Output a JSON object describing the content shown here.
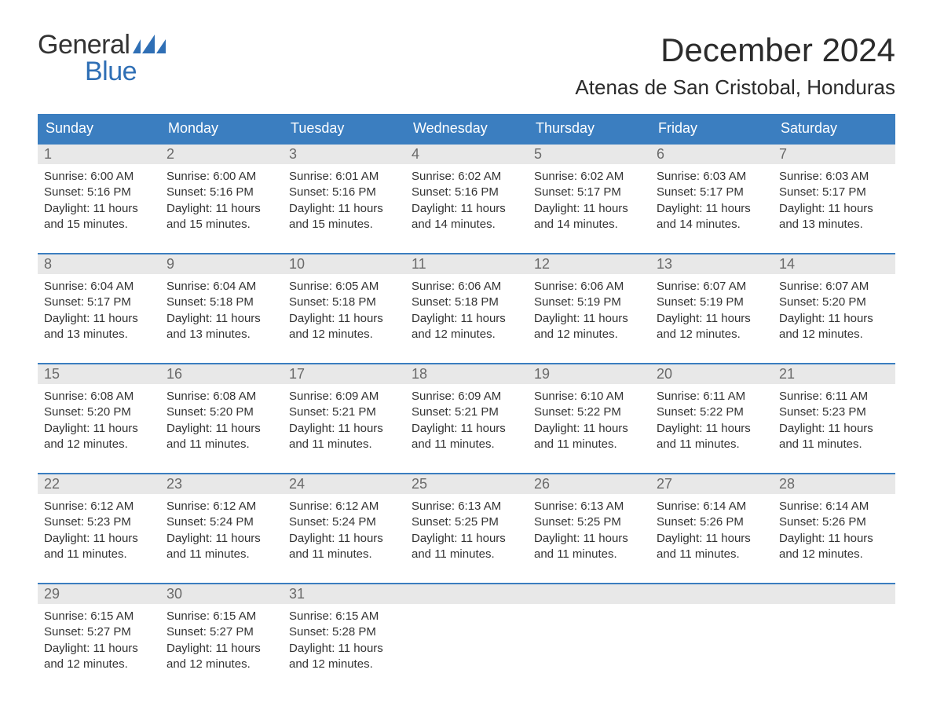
{
  "logo": {
    "text_general": "General",
    "text_blue": "Blue",
    "flag_color": "#2f6fb5"
  },
  "header": {
    "month_title": "December 2024",
    "location": "Atenas de San Cristobal, Honduras"
  },
  "colors": {
    "header_bar": "#3b7ec0",
    "header_text": "#ffffff",
    "day_number_bg": "#e8e8e8",
    "day_number_text": "#6a6a6a",
    "body_text": "#333333",
    "week_border": "#3b7ec0",
    "page_bg": "#ffffff"
  },
  "weekdays": [
    "Sunday",
    "Monday",
    "Tuesday",
    "Wednesday",
    "Thursday",
    "Friday",
    "Saturday"
  ],
  "weeks": [
    [
      {
        "day": "1",
        "sunrise": "Sunrise: 6:00 AM",
        "sunset": "Sunset: 5:16 PM",
        "daylight1": "Daylight: 11 hours",
        "daylight2": "and 15 minutes."
      },
      {
        "day": "2",
        "sunrise": "Sunrise: 6:00 AM",
        "sunset": "Sunset: 5:16 PM",
        "daylight1": "Daylight: 11 hours",
        "daylight2": "and 15 minutes."
      },
      {
        "day": "3",
        "sunrise": "Sunrise: 6:01 AM",
        "sunset": "Sunset: 5:16 PM",
        "daylight1": "Daylight: 11 hours",
        "daylight2": "and 15 minutes."
      },
      {
        "day": "4",
        "sunrise": "Sunrise: 6:02 AM",
        "sunset": "Sunset: 5:16 PM",
        "daylight1": "Daylight: 11 hours",
        "daylight2": "and 14 minutes."
      },
      {
        "day": "5",
        "sunrise": "Sunrise: 6:02 AM",
        "sunset": "Sunset: 5:17 PM",
        "daylight1": "Daylight: 11 hours",
        "daylight2": "and 14 minutes."
      },
      {
        "day": "6",
        "sunrise": "Sunrise: 6:03 AM",
        "sunset": "Sunset: 5:17 PM",
        "daylight1": "Daylight: 11 hours",
        "daylight2": "and 14 minutes."
      },
      {
        "day": "7",
        "sunrise": "Sunrise: 6:03 AM",
        "sunset": "Sunset: 5:17 PM",
        "daylight1": "Daylight: 11 hours",
        "daylight2": "and 13 minutes."
      }
    ],
    [
      {
        "day": "8",
        "sunrise": "Sunrise: 6:04 AM",
        "sunset": "Sunset: 5:17 PM",
        "daylight1": "Daylight: 11 hours",
        "daylight2": "and 13 minutes."
      },
      {
        "day": "9",
        "sunrise": "Sunrise: 6:04 AM",
        "sunset": "Sunset: 5:18 PM",
        "daylight1": "Daylight: 11 hours",
        "daylight2": "and 13 minutes."
      },
      {
        "day": "10",
        "sunrise": "Sunrise: 6:05 AM",
        "sunset": "Sunset: 5:18 PM",
        "daylight1": "Daylight: 11 hours",
        "daylight2": "and 12 minutes."
      },
      {
        "day": "11",
        "sunrise": "Sunrise: 6:06 AM",
        "sunset": "Sunset: 5:18 PM",
        "daylight1": "Daylight: 11 hours",
        "daylight2": "and 12 minutes."
      },
      {
        "day": "12",
        "sunrise": "Sunrise: 6:06 AM",
        "sunset": "Sunset: 5:19 PM",
        "daylight1": "Daylight: 11 hours",
        "daylight2": "and 12 minutes."
      },
      {
        "day": "13",
        "sunrise": "Sunrise: 6:07 AM",
        "sunset": "Sunset: 5:19 PM",
        "daylight1": "Daylight: 11 hours",
        "daylight2": "and 12 minutes."
      },
      {
        "day": "14",
        "sunrise": "Sunrise: 6:07 AM",
        "sunset": "Sunset: 5:20 PM",
        "daylight1": "Daylight: 11 hours",
        "daylight2": "and 12 minutes."
      }
    ],
    [
      {
        "day": "15",
        "sunrise": "Sunrise: 6:08 AM",
        "sunset": "Sunset: 5:20 PM",
        "daylight1": "Daylight: 11 hours",
        "daylight2": "and 12 minutes."
      },
      {
        "day": "16",
        "sunrise": "Sunrise: 6:08 AM",
        "sunset": "Sunset: 5:20 PM",
        "daylight1": "Daylight: 11 hours",
        "daylight2": "and 11 minutes."
      },
      {
        "day": "17",
        "sunrise": "Sunrise: 6:09 AM",
        "sunset": "Sunset: 5:21 PM",
        "daylight1": "Daylight: 11 hours",
        "daylight2": "and 11 minutes."
      },
      {
        "day": "18",
        "sunrise": "Sunrise: 6:09 AM",
        "sunset": "Sunset: 5:21 PM",
        "daylight1": "Daylight: 11 hours",
        "daylight2": "and 11 minutes."
      },
      {
        "day": "19",
        "sunrise": "Sunrise: 6:10 AM",
        "sunset": "Sunset: 5:22 PM",
        "daylight1": "Daylight: 11 hours",
        "daylight2": "and 11 minutes."
      },
      {
        "day": "20",
        "sunrise": "Sunrise: 6:11 AM",
        "sunset": "Sunset: 5:22 PM",
        "daylight1": "Daylight: 11 hours",
        "daylight2": "and 11 minutes."
      },
      {
        "day": "21",
        "sunrise": "Sunrise: 6:11 AM",
        "sunset": "Sunset: 5:23 PM",
        "daylight1": "Daylight: 11 hours",
        "daylight2": "and 11 minutes."
      }
    ],
    [
      {
        "day": "22",
        "sunrise": "Sunrise: 6:12 AM",
        "sunset": "Sunset: 5:23 PM",
        "daylight1": "Daylight: 11 hours",
        "daylight2": "and 11 minutes."
      },
      {
        "day": "23",
        "sunrise": "Sunrise: 6:12 AM",
        "sunset": "Sunset: 5:24 PM",
        "daylight1": "Daylight: 11 hours",
        "daylight2": "and 11 minutes."
      },
      {
        "day": "24",
        "sunrise": "Sunrise: 6:12 AM",
        "sunset": "Sunset: 5:24 PM",
        "daylight1": "Daylight: 11 hours",
        "daylight2": "and 11 minutes."
      },
      {
        "day": "25",
        "sunrise": "Sunrise: 6:13 AM",
        "sunset": "Sunset: 5:25 PM",
        "daylight1": "Daylight: 11 hours",
        "daylight2": "and 11 minutes."
      },
      {
        "day": "26",
        "sunrise": "Sunrise: 6:13 AM",
        "sunset": "Sunset: 5:25 PM",
        "daylight1": "Daylight: 11 hours",
        "daylight2": "and 11 minutes."
      },
      {
        "day": "27",
        "sunrise": "Sunrise: 6:14 AM",
        "sunset": "Sunset: 5:26 PM",
        "daylight1": "Daylight: 11 hours",
        "daylight2": "and 11 minutes."
      },
      {
        "day": "28",
        "sunrise": "Sunrise: 6:14 AM",
        "sunset": "Sunset: 5:26 PM",
        "daylight1": "Daylight: 11 hours",
        "daylight2": "and 12 minutes."
      }
    ],
    [
      {
        "day": "29",
        "sunrise": "Sunrise: 6:15 AM",
        "sunset": "Sunset: 5:27 PM",
        "daylight1": "Daylight: 11 hours",
        "daylight2": "and 12 minutes."
      },
      {
        "day": "30",
        "sunrise": "Sunrise: 6:15 AM",
        "sunset": "Sunset: 5:27 PM",
        "daylight1": "Daylight: 11 hours",
        "daylight2": "and 12 minutes."
      },
      {
        "day": "31",
        "sunrise": "Sunrise: 6:15 AM",
        "sunset": "Sunset: 5:28 PM",
        "daylight1": "Daylight: 11 hours",
        "daylight2": "and 12 minutes."
      },
      {
        "empty": true
      },
      {
        "empty": true
      },
      {
        "empty": true
      },
      {
        "empty": true
      }
    ]
  ]
}
